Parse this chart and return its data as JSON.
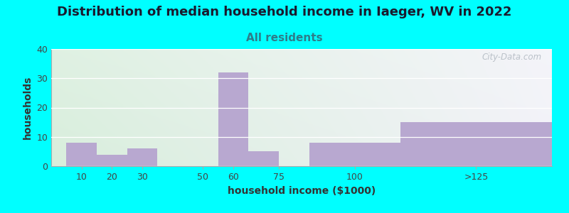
{
  "title": "Distribution of median household income in Iaeger, WV in 2022",
  "subtitle": "All residents",
  "xlabel": "household income ($1000)",
  "ylabel": "households",
  "bar_labels": [
    "10",
    "20",
    "30",
    "50",
    "60",
    "75",
    "100",
    ">125"
  ],
  "bar_heights": [
    8,
    4,
    6,
    0,
    32,
    5,
    8,
    15
  ],
  "bar_left_edges": [
    5,
    15,
    25,
    40,
    55,
    65,
    85,
    115
  ],
  "bar_right_edges": [
    15,
    25,
    35,
    55,
    65,
    75,
    115,
    165
  ],
  "bar_color": "#b8a8d0",
  "background_color": "#00ffff",
  "ylim": [
    0,
    40
  ],
  "yticks": [
    0,
    10,
    20,
    30,
    40
  ],
  "xtick_positions": [
    10,
    20,
    30,
    50,
    60,
    75,
    100,
    140
  ],
  "xlim": [
    0,
    165
  ],
  "watermark": "City-Data.com",
  "title_fontsize": 13,
  "subtitle_fontsize": 11,
  "subtitle_color": "#2d7d8a",
  "axis_label_fontsize": 10,
  "tick_fontsize": 9,
  "grid_color": "#ccddcc",
  "spine_color": "#aaaaaa"
}
